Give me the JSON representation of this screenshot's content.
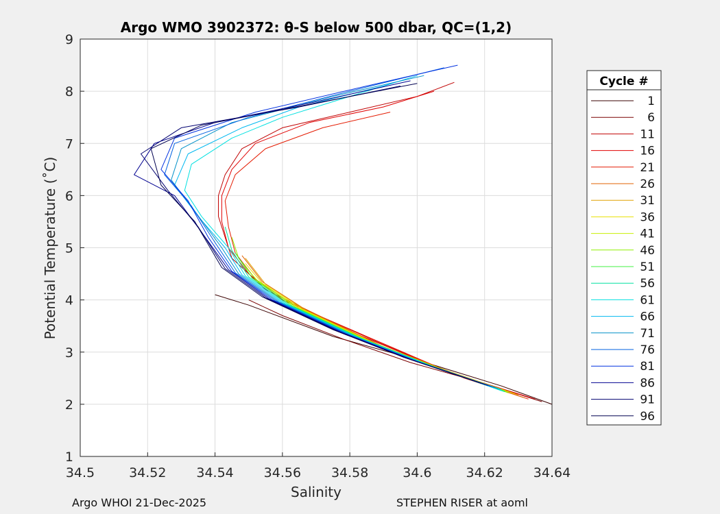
{
  "chart_data": {
    "type": "line",
    "title": "Argo WMO 3902372: θ-S below 500 dbar,  QC=(1,2)",
    "xlabel": "Salinity",
    "ylabel": "Potential Temperature (˚C)",
    "xlim": [
      34.5,
      34.64
    ],
    "ylim": [
      1,
      9
    ],
    "xticks": [
      "34.5",
      "34.52",
      "34.54",
      "34.56",
      "34.58",
      "34.6",
      "34.62",
      "34.64"
    ],
    "yticks": [
      "1",
      "2",
      "3",
      "4",
      "5",
      "6",
      "7",
      "8",
      "9"
    ],
    "grid": true,
    "legend": {
      "title": "Cycle #",
      "placement": "right-outside",
      "entries": [
        {
          "label": "1",
          "color": "#3a0000"
        },
        {
          "label": "6",
          "color": "#7a0000"
        },
        {
          "label": "11",
          "color": "#c00000"
        },
        {
          "label": "16",
          "color": "#e00000"
        },
        {
          "label": "21",
          "color": "#e41a00"
        },
        {
          "label": "26",
          "color": "#e06000"
        },
        {
          "label": "31",
          "color": "#e0a000"
        },
        {
          "label": "36",
          "color": "#e8e000"
        },
        {
          "label": "41",
          "color": "#c8ee00"
        },
        {
          "label": "46",
          "color": "#90f000"
        },
        {
          "label": "51",
          "color": "#40f040"
        },
        {
          "label": "56",
          "color": "#00e0a0"
        },
        {
          "label": "61",
          "color": "#00e0e0"
        },
        {
          "label": "66",
          "color": "#00b8f0"
        },
        {
          "label": "71",
          "color": "#0090c8"
        },
        {
          "label": "76",
          "color": "#0060e0"
        },
        {
          "label": "81",
          "color": "#0030e0"
        },
        {
          "label": "86",
          "color": "#000090"
        },
        {
          "label": "91",
          "color": "#000070"
        },
        {
          "label": "96",
          "color": "#000050"
        }
      ]
    },
    "series": [
      {
        "name": "1",
        "color": "#3a0000",
        "points": [
          [
            34.64,
            2.0
          ],
          [
            34.625,
            2.35
          ],
          [
            34.6,
            2.85
          ],
          [
            34.575,
            3.3
          ],
          [
            34.55,
            3.9
          ],
          [
            34.54,
            4.1
          ]
        ]
      },
      {
        "name": "6",
        "color": "#7a0000",
        "points": [
          [
            34.637,
            2.05
          ],
          [
            34.62,
            2.4
          ],
          [
            34.598,
            2.8
          ],
          [
            34.578,
            3.25
          ],
          [
            34.56,
            3.7
          ],
          [
            34.55,
            4.0
          ]
        ]
      },
      {
        "name": "11",
        "color": "#c00000",
        "points": [
          [
            34.635,
            2.1
          ],
          [
            34.61,
            2.6
          ],
          [
            34.58,
            3.4
          ],
          [
            34.555,
            4.2
          ],
          [
            34.545,
            4.8
          ],
          [
            34.543,
            5.2
          ],
          [
            34.541,
            5.6
          ],
          [
            34.541,
            6.0
          ],
          [
            34.543,
            6.4
          ],
          [
            34.548,
            6.9
          ],
          [
            34.56,
            7.3
          ],
          [
            34.58,
            7.6
          ],
          [
            34.6,
            7.9
          ],
          [
            34.611,
            8.17
          ]
        ]
      },
      {
        "name": "16",
        "color": "#e00000",
        "points": [
          [
            34.634,
            2.12
          ],
          [
            34.612,
            2.55
          ],
          [
            34.585,
            3.3
          ],
          [
            34.56,
            4.0
          ],
          [
            34.55,
            4.5
          ],
          [
            34.544,
            5.0
          ],
          [
            34.542,
            5.5
          ],
          [
            34.542,
            6.0
          ],
          [
            34.545,
            6.5
          ],
          [
            34.552,
            7.0
          ],
          [
            34.568,
            7.4
          ],
          [
            34.59,
            7.7
          ],
          [
            34.605,
            8.0
          ]
        ]
      },
      {
        "name": "21",
        "color": "#e41a00",
        "points": [
          [
            34.633,
            2.1
          ],
          [
            34.614,
            2.5
          ],
          [
            34.588,
            3.2
          ],
          [
            34.562,
            3.95
          ],
          [
            34.552,
            4.4
          ],
          [
            34.546,
            4.9
          ],
          [
            34.544,
            5.4
          ],
          [
            34.543,
            5.9
          ],
          [
            34.546,
            6.4
          ],
          [
            34.555,
            6.9
          ],
          [
            34.572,
            7.3
          ],
          [
            34.592,
            7.6
          ]
        ]
      },
      {
        "name": "26",
        "color": "#e06000",
        "points": [
          [
            34.632,
            2.12
          ],
          [
            34.612,
            2.55
          ],
          [
            34.59,
            3.1
          ],
          [
            34.566,
            3.85
          ],
          [
            34.554,
            4.35
          ],
          [
            34.548,
            4.85
          ]
        ]
      },
      {
        "name": "31",
        "color": "#e0a000",
        "points": [
          [
            34.63,
            2.18
          ],
          [
            34.61,
            2.62
          ],
          [
            34.588,
            3.15
          ],
          [
            34.567,
            3.8
          ],
          [
            34.555,
            4.3
          ],
          [
            34.549,
            4.8
          ]
        ]
      },
      {
        "name": "36",
        "color": "#e8e000",
        "points": [
          [
            34.629,
            2.2
          ],
          [
            34.608,
            2.65
          ],
          [
            34.587,
            3.18
          ],
          [
            34.566,
            3.82
          ],
          [
            34.554,
            4.32
          ],
          [
            34.549,
            4.7
          ]
        ]
      },
      {
        "name": "41",
        "color": "#c8ee00",
        "points": [
          [
            34.628,
            2.22
          ],
          [
            34.607,
            2.67
          ],
          [
            34.586,
            3.2
          ],
          [
            34.565,
            3.84
          ],
          [
            34.553,
            4.34
          ],
          [
            34.548,
            4.7
          ]
        ]
      },
      {
        "name": "46",
        "color": "#90f000",
        "points": [
          [
            34.627,
            2.22
          ],
          [
            34.606,
            2.7
          ],
          [
            34.585,
            3.22
          ],
          [
            34.564,
            3.86
          ],
          [
            34.552,
            4.4
          ],
          [
            34.547,
            4.8
          ],
          [
            34.545,
            5.2
          ]
        ]
      },
      {
        "name": "51",
        "color": "#40f040",
        "points": [
          [
            34.626,
            2.25
          ],
          [
            34.605,
            2.72
          ],
          [
            34.584,
            3.25
          ],
          [
            34.563,
            3.88
          ],
          [
            34.551,
            4.42
          ],
          [
            34.546,
            4.9
          ]
        ]
      },
      {
        "name": "56",
        "color": "#00e0a0",
        "points": [
          [
            34.626,
            2.24
          ],
          [
            34.604,
            2.74
          ],
          [
            34.583,
            3.27
          ],
          [
            34.562,
            3.9
          ],
          [
            34.55,
            4.44
          ],
          [
            34.545,
            4.95
          ],
          [
            34.543,
            5.4
          ]
        ]
      },
      {
        "name": "61",
        "color": "#00e0e0",
        "points": [
          [
            34.625,
            2.26
          ],
          [
            34.603,
            2.76
          ],
          [
            34.582,
            3.29
          ],
          [
            34.561,
            3.92
          ],
          [
            34.549,
            4.46
          ],
          [
            34.544,
            5.0
          ],
          [
            34.536,
            5.6
          ],
          [
            34.531,
            6.1
          ],
          [
            34.533,
            6.6
          ],
          [
            34.545,
            7.1
          ],
          [
            34.56,
            7.5
          ],
          [
            34.58,
            7.9
          ],
          [
            34.595,
            8.2
          ]
        ]
      },
      {
        "name": "66",
        "color": "#00b8f0",
        "points": [
          [
            34.625,
            2.28
          ],
          [
            34.602,
            2.78
          ],
          [
            34.581,
            3.31
          ],
          [
            34.56,
            3.94
          ],
          [
            34.548,
            4.48
          ],
          [
            34.543,
            5.0
          ],
          [
            34.535,
            5.6
          ],
          [
            34.528,
            6.2
          ],
          [
            34.532,
            6.8
          ],
          [
            34.548,
            7.3
          ],
          [
            34.565,
            7.7
          ],
          [
            34.59,
            8.1
          ],
          [
            34.6,
            8.3
          ]
        ]
      },
      {
        "name": "71",
        "color": "#0090c8",
        "points": [
          [
            34.624,
            2.3
          ],
          [
            34.601,
            2.8
          ],
          [
            34.58,
            3.33
          ],
          [
            34.559,
            3.96
          ],
          [
            34.547,
            4.5
          ],
          [
            34.542,
            5.0
          ],
          [
            34.534,
            5.7
          ],
          [
            34.527,
            6.3
          ],
          [
            34.53,
            6.9
          ],
          [
            34.545,
            7.4
          ],
          [
            34.575,
            7.9
          ],
          [
            34.602,
            8.3
          ]
        ]
      },
      {
        "name": "76",
        "color": "#0060e0",
        "points": [
          [
            34.623,
            2.32
          ],
          [
            34.6,
            2.82
          ],
          [
            34.579,
            3.35
          ],
          [
            34.558,
            3.98
          ],
          [
            34.546,
            4.52
          ],
          [
            34.54,
            5.1
          ],
          [
            34.533,
            5.8
          ],
          [
            34.525,
            6.4
          ],
          [
            34.528,
            7.0
          ],
          [
            34.55,
            7.5
          ],
          [
            34.58,
            8.0
          ],
          [
            34.608,
            8.45
          ]
        ]
      },
      {
        "name": "81",
        "color": "#0030e0",
        "points": [
          [
            34.622,
            2.34
          ],
          [
            34.599,
            2.84
          ],
          [
            34.578,
            3.37
          ],
          [
            34.557,
            4.0
          ],
          [
            34.545,
            4.55
          ],
          [
            34.538,
            5.2
          ],
          [
            34.532,
            5.9
          ],
          [
            34.524,
            6.5
          ],
          [
            34.528,
            7.1
          ],
          [
            34.552,
            7.6
          ],
          [
            34.585,
            8.1
          ],
          [
            34.612,
            8.5
          ]
        ]
      },
      {
        "name": "86",
        "color": "#000090",
        "points": [
          [
            34.621,
            2.36
          ],
          [
            34.598,
            2.86
          ],
          [
            34.577,
            3.39
          ],
          [
            34.556,
            4.02
          ],
          [
            34.544,
            4.58
          ],
          [
            34.536,
            5.3
          ],
          [
            34.528,
            6.0
          ],
          [
            34.516,
            6.4
          ],
          [
            34.522,
            7.0
          ],
          [
            34.54,
            7.4
          ],
          [
            34.57,
            7.8
          ],
          [
            34.598,
            8.2
          ]
        ]
      },
      {
        "name": "91",
        "color": "#000070",
        "points": [
          [
            34.62,
            2.38
          ],
          [
            34.597,
            2.88
          ],
          [
            34.576,
            3.41
          ],
          [
            34.555,
            4.04
          ],
          [
            34.543,
            4.6
          ],
          [
            34.535,
            5.4
          ],
          [
            34.526,
            6.1
          ],
          [
            34.518,
            6.8
          ],
          [
            34.53,
            7.3
          ],
          [
            34.565,
            7.7
          ],
          [
            34.595,
            8.1
          ]
        ]
      },
      {
        "name": "96",
        "color": "#000050",
        "points": [
          [
            34.619,
            2.4
          ],
          [
            34.596,
            2.9
          ],
          [
            34.575,
            3.43
          ],
          [
            34.554,
            4.06
          ],
          [
            34.542,
            4.62
          ],
          [
            34.534,
            5.5
          ],
          [
            34.524,
            6.2
          ],
          [
            34.521,
            6.9
          ],
          [
            34.536,
            7.35
          ],
          [
            34.568,
            7.75
          ],
          [
            34.6,
            8.15
          ]
        ]
      }
    ]
  },
  "footer": {
    "left": "Argo WHOI 21-Dec-2025",
    "right": "STEPHEN RISER at aoml"
  }
}
